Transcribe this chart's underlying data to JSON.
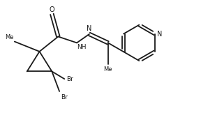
{
  "bg_color": "#ffffff",
  "line_color": "#1a1a1a",
  "line_width": 1.3,
  "font_size": 6.5,
  "figsize": [
    2.88,
    1.62
  ],
  "dpi": 100,
  "xlim": [
    0.0,
    8.0
  ],
  "ylim": [
    0.3,
    4.8
  ]
}
